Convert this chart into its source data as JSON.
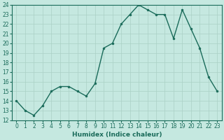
{
  "x": [
    0,
    1,
    2,
    3,
    4,
    5,
    6,
    7,
    8,
    9,
    10,
    11,
    12,
    13,
    14,
    15,
    16,
    17,
    18,
    19,
    20,
    21,
    22,
    23
  ],
  "y": [
    14,
    13,
    12.5,
    13.5,
    15,
    15.5,
    15.5,
    15,
    14.5,
    15.8,
    19.5,
    20,
    22,
    23,
    24,
    23.5,
    23,
    23,
    20.5,
    23.5,
    21.5,
    19.5,
    16.5,
    15
  ],
  "line_color": "#1a6b5a",
  "marker_color": "#1a6b5a",
  "bg_color": "#c5e8e0",
  "grid_color": "#aad0c5",
  "xlabel": "Humidex (Indice chaleur)",
  "ylim": [
    12,
    24
  ],
  "xlim": [
    -0.5,
    23.5
  ],
  "yticks": [
    12,
    13,
    14,
    15,
    16,
    17,
    18,
    19,
    20,
    21,
    22,
    23,
    24
  ],
  "xticks": [
    0,
    1,
    2,
    3,
    4,
    5,
    6,
    7,
    8,
    9,
    10,
    11,
    12,
    13,
    14,
    15,
    16,
    17,
    18,
    19,
    20,
    21,
    22,
    23
  ],
  "xtick_labels": [
    "0",
    "1",
    "2",
    "3",
    "4",
    "5",
    "6",
    "7",
    "8",
    "9",
    "10",
    "11",
    "12",
    "13",
    "14",
    "15",
    "16",
    "17",
    "18",
    "19",
    "20",
    "21",
    "22",
    "23"
  ],
  "font_color": "#1a6b5a",
  "marker_size": 2.0,
  "line_width": 1.0,
  "tick_fontsize": 5.5,
  "xlabel_fontsize": 6.5
}
